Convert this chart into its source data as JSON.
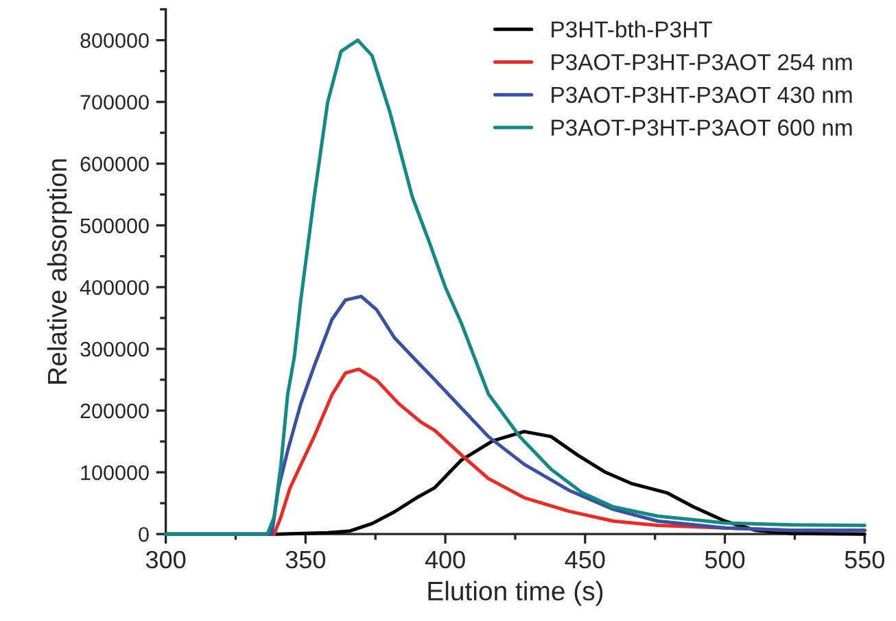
{
  "chart_data": {
    "type": "line",
    "xlabel": "Elution time (s)",
    "ylabel": "Relative absorption",
    "xlim": [
      300,
      550
    ],
    "xticks": [
      300,
      350,
      400,
      450,
      500,
      550
    ],
    "ylim": [
      0,
      850000
    ],
    "yticks": [
      0,
      100000,
      200000,
      300000,
      400000,
      500000,
      600000,
      700000,
      800000
    ],
    "grid": false,
    "legend": "top right",
    "line_style": "solid",
    "marker": "none",
    "series": [
      {
        "name": "P3HT-bth-P3HT",
        "color": "#000000",
        "x": [
          300,
          340.3,
          357.9,
          365.9,
          373.8,
          381.8,
          389.8,
          396.2,
          405.8,
          417,
          428.2,
          437.8,
          447.3,
          456.9,
          466.5,
          479.2,
          488.8,
          500,
          511.1,
          523.9,
          550
        ],
        "values": [
          0,
          0,
          2000,
          5000,
          17000,
          36000,
          59000,
          75000,
          120000,
          151000,
          166000,
          158000,
          128000,
          101000,
          82000,
          67000,
          44000,
          21000,
          6000,
          1000,
          0
        ]
      },
      {
        "name": "P3AOT-P3HT-P3AOT 254 nm",
        "color": "#ee2a24",
        "x": [
          300,
          338.8,
          341.2,
          344.4,
          348.3,
          353.1,
          359.5,
          364.3,
          369.1,
          375.5,
          383.4,
          391.4,
          396.2,
          405.8,
          415.4,
          428.2,
          444.2,
          460.1,
          476,
          500,
          523.9,
          550
        ],
        "values": [
          0,
          0,
          28000,
          74000,
          112000,
          158000,
          226000,
          261000,
          267000,
          249000,
          211000,
          181000,
          168000,
          128000,
          90000,
          59000,
          37000,
          21000,
          14000,
          10000,
          6000,
          6000
        ]
      },
      {
        "name": "P3AOT-P3HT-P3AOT 430 nm",
        "color": "#3a50a2",
        "x": [
          300,
          337.9,
          340.3,
          343.6,
          348.3,
          353.1,
          359.5,
          364.3,
          369.9,
          375.5,
          381.8,
          389.8,
          396.2,
          405.8,
          415.4,
          428.2,
          444.2,
          460.1,
          476,
          500,
          523.9,
          550
        ],
        "values": [
          0,
          0,
          74000,
          135000,
          211000,
          272000,
          348000,
          379000,
          385000,
          363000,
          318000,
          280000,
          250000,
          204000,
          158000,
          113000,
          71000,
          40000,
          21000,
          10000,
          6000,
          6000
        ]
      },
      {
        "name": "P3AOT-P3HT-P3AOT 600 nm",
        "color": "#138a85",
        "x": [
          300,
          336.4,
          338.8,
          341.2,
          343.6,
          346,
          348.3,
          353.1,
          357.9,
          362.7,
          368.7,
          373.8,
          380.2,
          388.2,
          394.5,
          400,
          405.8,
          415.4,
          426.6,
          437.8,
          448.9,
          460.1,
          476,
          500,
          523.9,
          550
        ],
        "values": [
          0,
          0,
          28000,
          112000,
          226000,
          287000,
          379000,
          546000,
          699000,
          782000,
          800000,
          775000,
          683000,
          546000,
          470000,
          400000,
          341000,
          227000,
          158000,
          105000,
          67000,
          44000,
          29000,
          18000,
          15000,
          14000
        ]
      }
    ]
  }
}
